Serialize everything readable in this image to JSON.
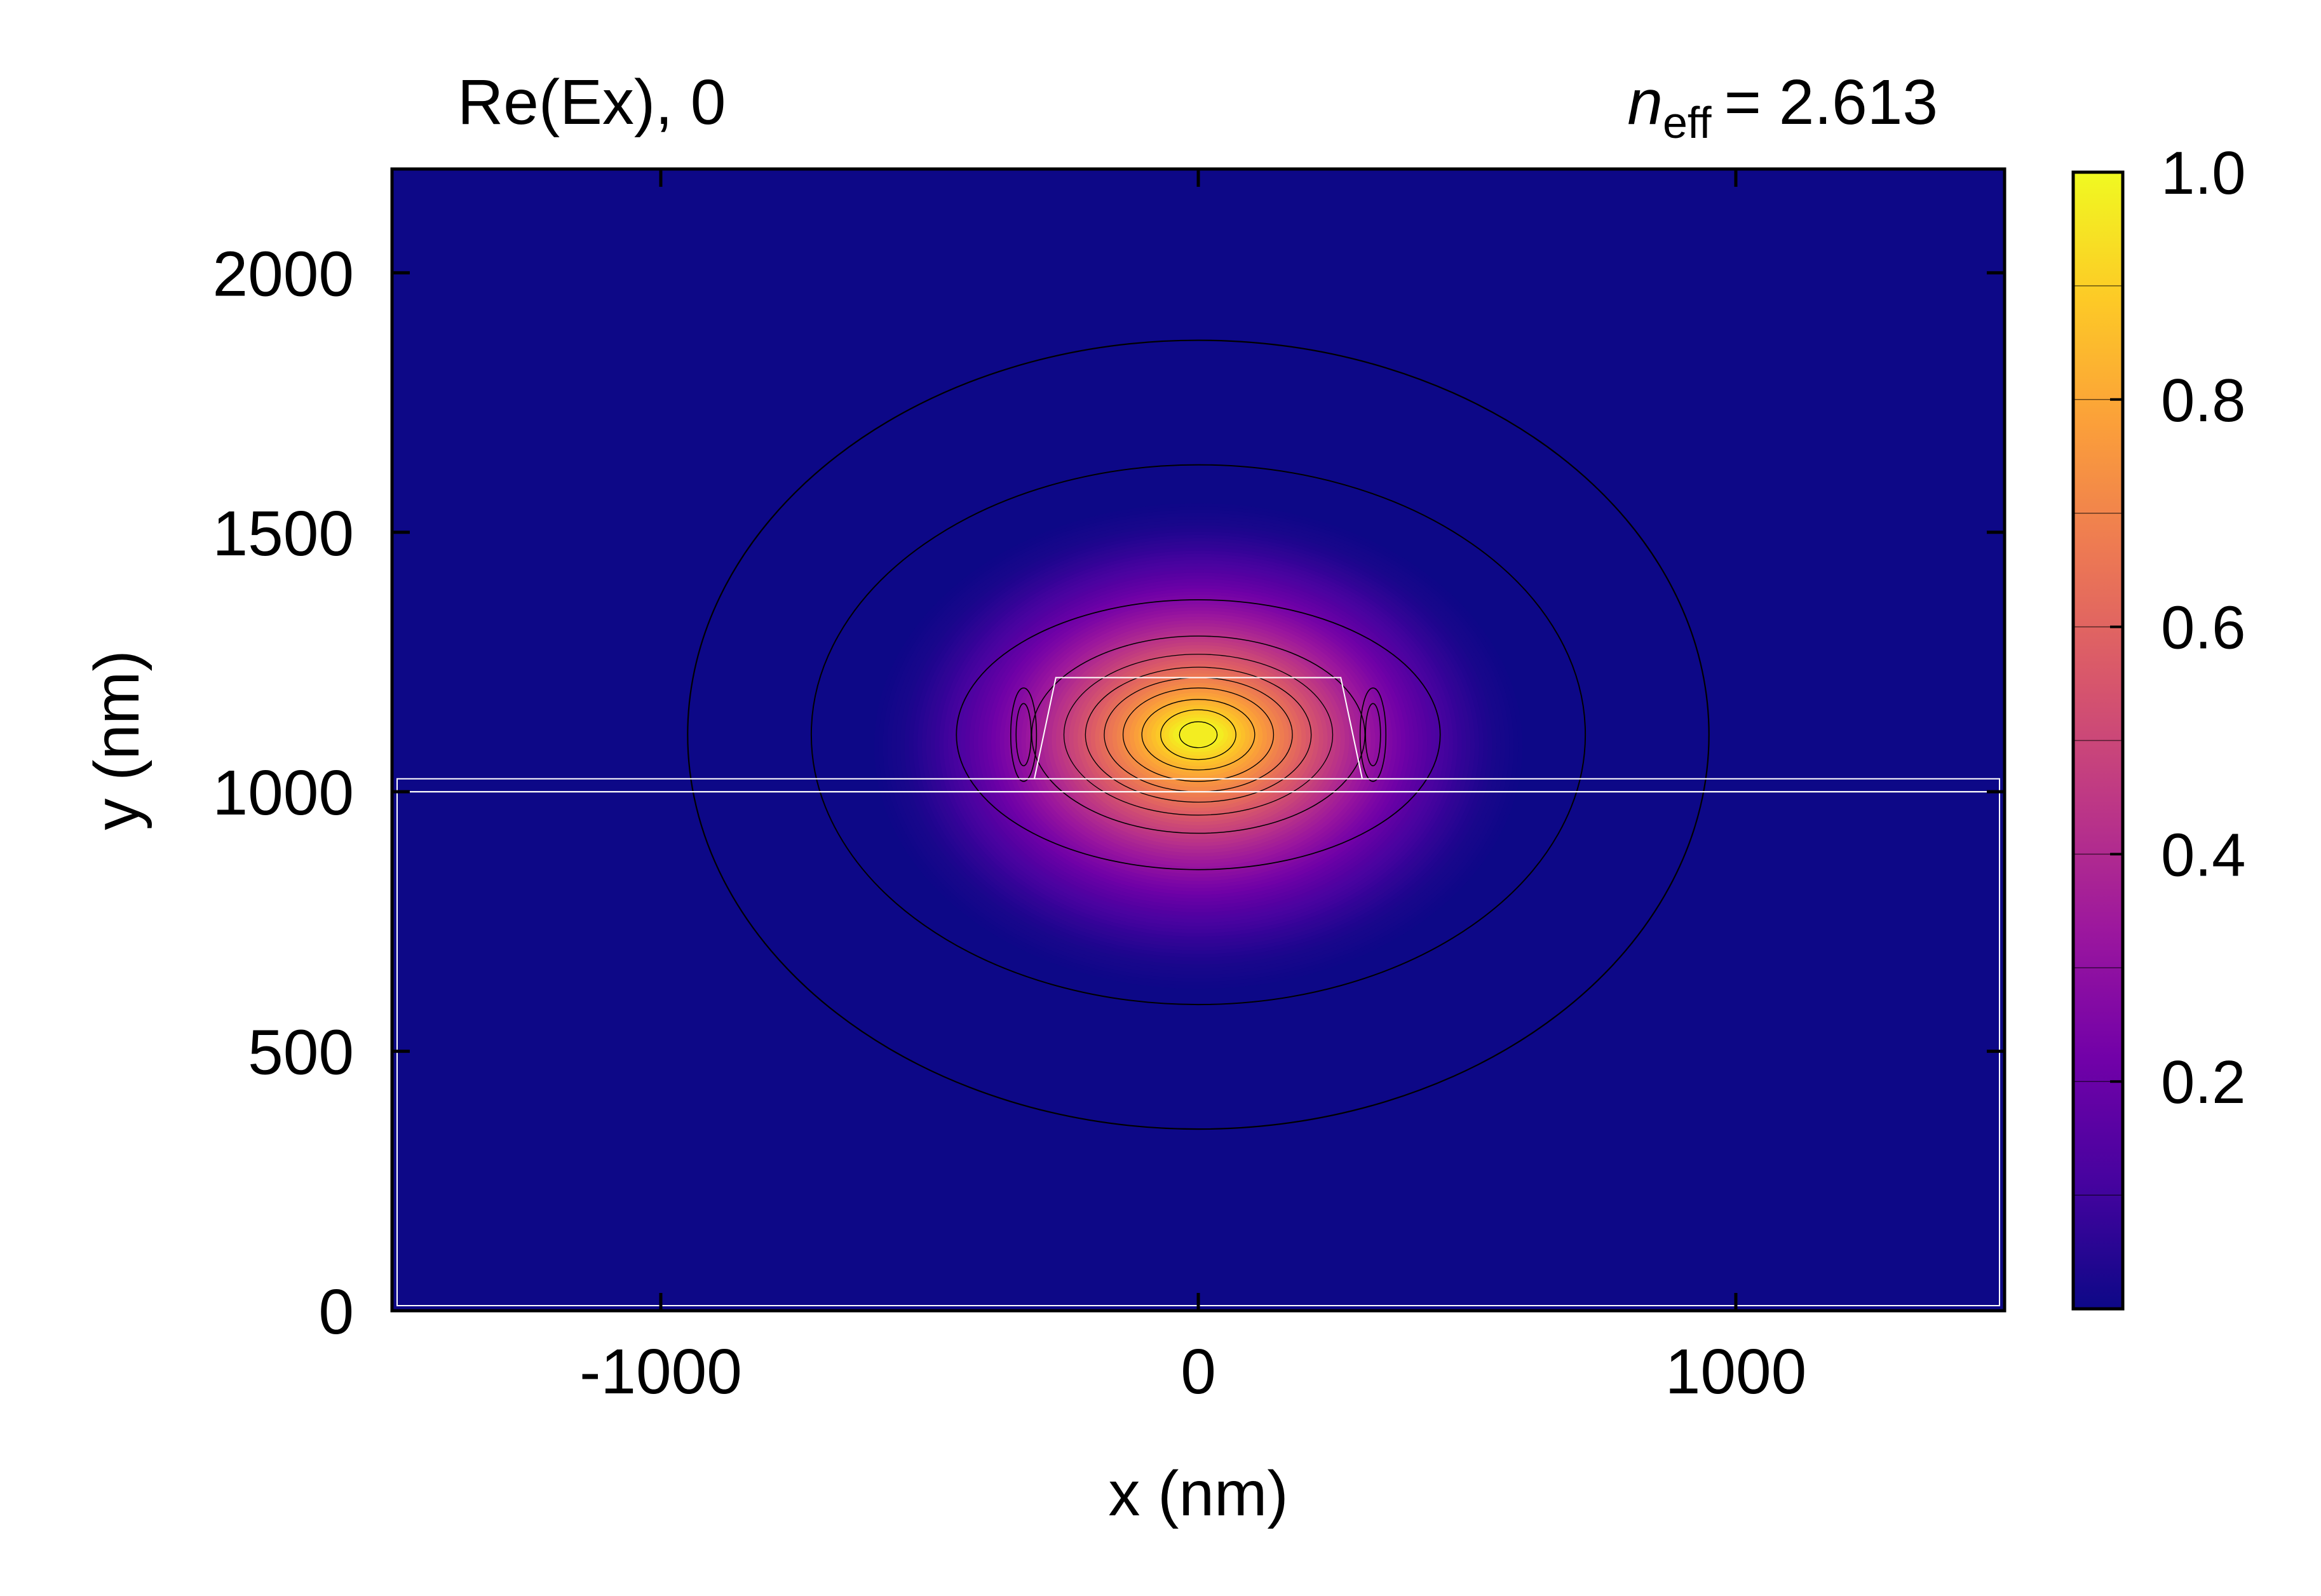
{
  "chart_data": {
    "type": "heatmap",
    "title_left": "Re(Ex), 0",
    "title_right_symbol": "n",
    "title_right_sub": "eff",
    "title_right_value": "= 2.613",
    "xlabel": "x (nm)",
    "ylabel": "y (nm)",
    "xlim": [
      -1500,
      1500
    ],
    "ylim": [
      0,
      2200
    ],
    "x_ticks": [
      -1000,
      0,
      1000
    ],
    "x_tick_labels": [
      "-1000",
      "0",
      "1000"
    ],
    "y_ticks": [
      0,
      500,
      1000,
      1500,
      2000
    ],
    "y_tick_labels": [
      "0",
      "500",
      "1000",
      "1500",
      "2000"
    ],
    "colormap": "plasma",
    "colorbar": {
      "range": [
        0,
        1.0
      ],
      "ticks": [
        0.2,
        0.4,
        0.6,
        0.8,
        1.0
      ],
      "tick_labels": [
        "0.2",
        "0.4",
        "0.6",
        "0.8",
        "1.0"
      ]
    },
    "field_peak": {
      "x": 0,
      "y": 1110,
      "value": 1.0
    },
    "contour_levels": [
      0.02,
      0.05,
      0.1,
      0.2,
      0.3,
      0.4,
      0.5,
      0.6,
      0.7,
      0.8,
      0.9,
      0.98
    ],
    "structure": {
      "substrate": {
        "x_range": [
          -1500,
          1500
        ],
        "y_range": [
          0,
          1000
        ]
      },
      "slab": {
        "x_range": [
          -1500,
          1500
        ],
        "y_range": [
          1000,
          1025
        ]
      },
      "ridge": {
        "y_bottom": 1025,
        "y_top": 1220,
        "bottom_x": [
          -305,
          305
        ],
        "top_x": [
          -265,
          265
        ]
      }
    },
    "colors": {
      "background": "#0d0887",
      "plasma": [
        "#0d0887",
        "#46039f",
        "#7201a8",
        "#9c179e",
        "#bd3786",
        "#d8576b",
        "#ed7953",
        "#fb9f3a",
        "#fdca26",
        "#f0f921"
      ],
      "outline": "#ffffff",
      "contour": "#000000"
    }
  }
}
